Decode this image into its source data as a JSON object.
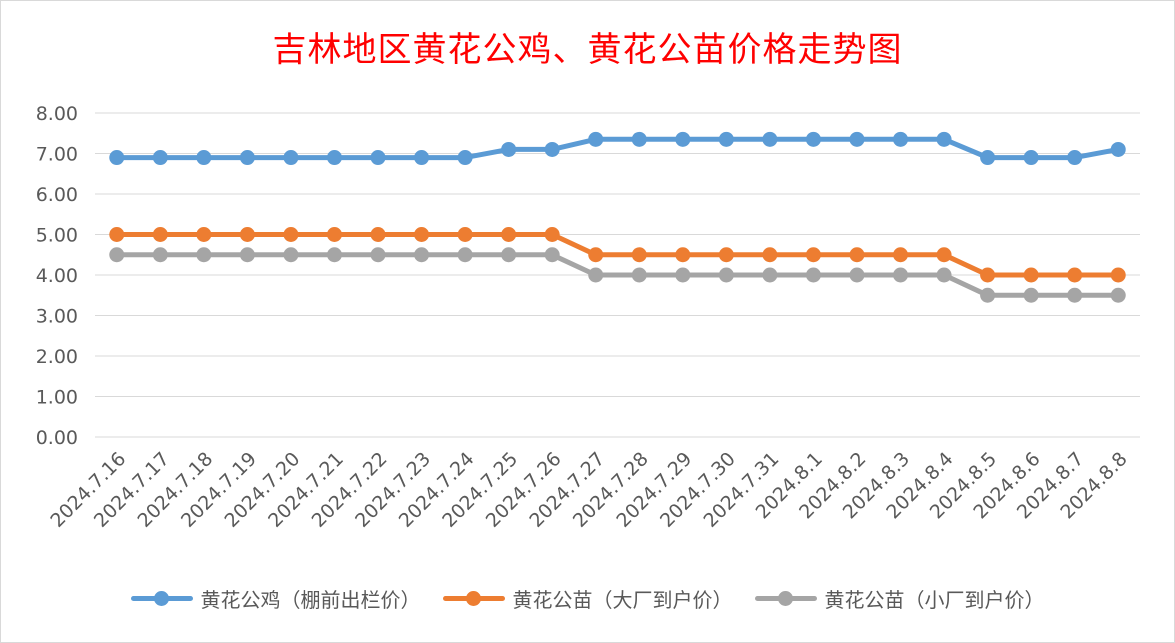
{
  "chart_data": {
    "type": "line",
    "title": "吉林地区黄花公鸡、黄花公苗价格走势图",
    "categories": [
      "2024.7.16",
      "2024.7.17",
      "2024.7.18",
      "2024.7.19",
      "2024.7.20",
      "2024.7.21",
      "2024.7.22",
      "2024.7.23",
      "2024.7.24",
      "2024.7.25",
      "2024.7.26",
      "2024.7.27",
      "2024.7.28",
      "2024.7.29",
      "2024.7.30",
      "2024.7.31",
      "2024.8.1",
      "2024.8.2",
      "2024.8.3",
      "2024.8.4",
      "2024.8.5",
      "2024.8.6",
      "2024.8.7",
      "2024.8.8"
    ],
    "series": [
      {
        "name": "黄花公鸡（棚前出栏价）",
        "color": "#5b9bd5",
        "values": [
          6.9,
          6.9,
          6.9,
          6.9,
          6.9,
          6.9,
          6.9,
          6.9,
          6.9,
          7.1,
          7.1,
          7.35,
          7.35,
          7.35,
          7.35,
          7.35,
          7.35,
          7.35,
          7.35,
          7.35,
          6.9,
          6.9,
          6.9,
          7.1
        ]
      },
      {
        "name": "黄花公苗（大厂到户价）",
        "color": "#ed7d31",
        "values": [
          5.0,
          5.0,
          5.0,
          5.0,
          5.0,
          5.0,
          5.0,
          5.0,
          5.0,
          5.0,
          5.0,
          4.5,
          4.5,
          4.5,
          4.5,
          4.5,
          4.5,
          4.5,
          4.5,
          4.5,
          4.0,
          4.0,
          4.0,
          4.0
        ]
      },
      {
        "name": "黄花公苗（小厂到户价）",
        "color": "#a5a5a5",
        "values": [
          4.5,
          4.5,
          4.5,
          4.5,
          4.5,
          4.5,
          4.5,
          4.5,
          4.5,
          4.5,
          4.5,
          4.0,
          4.0,
          4.0,
          4.0,
          4.0,
          4.0,
          4.0,
          4.0,
          4.0,
          3.5,
          3.5,
          3.5,
          3.5
        ]
      }
    ],
    "yticks": [
      "0.00",
      "1.00",
      "2.00",
      "3.00",
      "4.00",
      "5.00",
      "6.00",
      "7.00",
      "8.00"
    ],
    "ylim": [
      0,
      8
    ],
    "grid": true,
    "legend_position": "bottom",
    "title_color": "#ff0000",
    "gridline_color": "#d9d9d9",
    "tick_label_color": "#595959"
  }
}
